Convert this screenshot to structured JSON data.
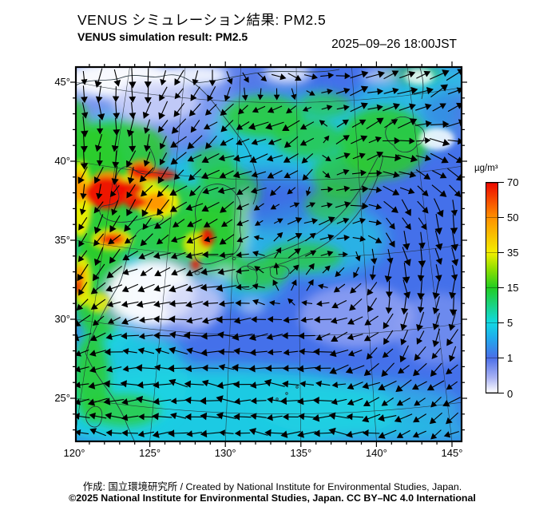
{
  "figure": {
    "title_jp": "VENUS シミュレーション結果: PM2.5",
    "title_en": "VENUS simulation result: PM2.5",
    "datetime": "2025–09–26 18:00JST",
    "credit": "作成: 国立環境研究所 / Created by National Institute for Environmental Studies, Japan.",
    "license": "©2025 National Institute for Environmental Studies, Japan. CC BY–NC 4.0 International"
  },
  "chart_data": {
    "type": "heatmap",
    "title": "VENUS simulation result: PM2.5",
    "valid_time": "2025-09-26 18:00 JST",
    "variable": "PM2.5 surface concentration with wind vectors",
    "unit": "µg/m³",
    "x_axis": {
      "tick_labels": [
        "120°",
        "125°",
        "130°",
        "135°",
        "140°",
        "145°"
      ],
      "tick_lons": [
        120,
        125,
        130,
        135,
        140,
        145
      ],
      "minor_step_deg": 1
    },
    "y_axis": {
      "tick_labels": [
        "45°",
        "40°",
        "35°",
        "30°",
        "25°"
      ],
      "tick_lats": [
        45,
        40,
        35,
        30,
        25
      ],
      "minor_step_deg": 1
    },
    "legend_position": "right",
    "grid": true,
    "colorbar": {
      "unit": "µg/m³",
      "tick_values": [
        "70",
        "50",
        "35",
        "15",
        "5",
        "1",
        "0"
      ],
      "tick_pcts": [
        100,
        83.3,
        66.7,
        50,
        33.3,
        16.7,
        0
      ],
      "gradient_stops": [
        [
          0,
          "#ffffff"
        ],
        [
          7,
          "#aab3f3"
        ],
        [
          16.7,
          "#4a6ee8"
        ],
        [
          26,
          "#21aaec"
        ],
        [
          33.3,
          "#12d8e2"
        ],
        [
          50,
          "#22cd22"
        ],
        [
          59,
          "#90df00"
        ],
        [
          66.7,
          "#f2ee00"
        ],
        [
          83.3,
          "#ff9100"
        ],
        [
          100,
          "#ec0800"
        ]
      ]
    },
    "field_blobs": [
      [
        75,
        52,
        115,
        55,
        "lightblue",
        0.9,
        1
      ],
      [
        200,
        28,
        85,
        35,
        "lightblue",
        0.75,
        1
      ],
      [
        470,
        45,
        55,
        45,
        "lightblue",
        0.55,
        1
      ],
      [
        170,
        430,
        235,
        55,
        "cyan",
        0.9,
        1
      ],
      [
        40,
        210,
        55,
        150,
        "cyan",
        0.85,
        1
      ],
      [
        145,
        192,
        75,
        85,
        "cyan",
        0.8,
        1
      ],
      [
        265,
        88,
        95,
        60,
        "cyan",
        0.8,
        1
      ],
      [
        300,
        215,
        90,
        48,
        "cyan",
        0.65,
        1
      ],
      [
        410,
        60,
        70,
        48,
        "cyan",
        0.7,
        1
      ],
      [
        60,
        390,
        80,
        70,
        "cyan",
        0.85,
        1
      ],
      [
        460,
        18,
        40,
        24,
        "cyan",
        0.7,
        1
      ],
      [
        355,
        428,
        130,
        35,
        "cyan",
        0.55,
        1
      ],
      [
        420,
        458,
        90,
        16,
        "cyan",
        0.6,
        1
      ],
      [
        210,
        270,
        50,
        28,
        "cyan",
        0.6,
        1
      ],
      [
        245,
        165,
        65,
        40,
        "blue2",
        0.6,
        1
      ],
      [
        465,
        55,
        35,
        30,
        "blue2",
        0.5,
        1
      ],
      [
        250,
        22,
        60,
        28,
        "blue2",
        0.5,
        1
      ],
      [
        25,
        160,
        35,
        90,
        "green",
        0.9,
        2
      ],
      [
        30,
        270,
        35,
        70,
        "green",
        0.85,
        2
      ],
      [
        55,
        105,
        60,
        38,
        "green",
        0.85,
        2
      ],
      [
        100,
        190,
        70,
        52,
        "green",
        0.8,
        2
      ],
      [
        160,
        222,
        52,
        42,
        "green",
        0.8,
        2
      ],
      [
        185,
        200,
        32,
        30,
        "green",
        0.75,
        2
      ],
      [
        190,
        158,
        40,
        32,
        "green",
        0.7,
        2
      ],
      [
        235,
        62,
        50,
        26,
        "green",
        0.8,
        2
      ],
      [
        290,
        90,
        42,
        24,
        "green",
        0.7,
        2
      ],
      [
        385,
        95,
        55,
        45,
        "green",
        0.85,
        2
      ],
      [
        338,
        135,
        42,
        28,
        "green",
        0.7,
        2
      ],
      [
        322,
        172,
        35,
        22,
        "green",
        0.6,
        2
      ],
      [
        285,
        238,
        48,
        18,
        "green",
        0.7,
        2
      ],
      [
        225,
        258,
        40,
        20,
        "green",
        0.75,
        2
      ],
      [
        20,
        390,
        22,
        55,
        "green",
        0.85,
        2
      ],
      [
        60,
        430,
        45,
        20,
        "green",
        0.75,
        2
      ],
      [
        172,
        122,
        28,
        22,
        "green",
        0.65,
        2
      ],
      [
        0,
        85,
        16,
        45,
        "green",
        0.9,
        2
      ],
      [
        312,
        48,
        32,
        16,
        "green",
        0.6,
        2
      ],
      [
        418,
        8,
        40,
        12,
        "green",
        0.5,
        2
      ],
      [
        352,
        312,
        72,
        40,
        "periwinkle",
        0.8,
        2
      ],
      [
        452,
        328,
        52,
        45,
        "periwinkle",
        0.5,
        2
      ],
      [
        110,
        290,
        80,
        52,
        "periwinkle",
        0.6,
        2
      ],
      [
        212,
        195,
        10,
        42,
        "paleLav",
        0.45,
        2
      ],
      [
        187,
        258,
        14,
        10,
        "paleLav",
        0.6,
        2
      ],
      [
        220,
        300,
        16,
        10,
        "paleLav",
        0.55,
        2
      ],
      [
        55,
        15,
        72,
        24,
        "white",
        0.95,
        2
      ],
      [
        100,
        44,
        55,
        26,
        "paleLav",
        0.85,
        2
      ],
      [
        150,
        10,
        40,
        14,
        "white",
        0.85,
        2
      ],
      [
        265,
        8,
        30,
        12,
        "white",
        0.8,
        2
      ],
      [
        380,
        12,
        22,
        10,
        "paleLav",
        0.7,
        2
      ],
      [
        95,
        283,
        55,
        40,
        "white",
        0.95,
        2
      ],
      [
        147,
        297,
        36,
        28,
        "paleLav",
        0.7,
        2
      ],
      [
        452,
        90,
        22,
        14,
        "white",
        0.85,
        3
      ],
      [
        430,
        12,
        18,
        10,
        "white",
        0.8,
        3
      ],
      [
        6,
        165,
        14,
        48,
        "yellow",
        0.95,
        3
      ],
      [
        103,
        170,
        27,
        20,
        "yellow",
        0.95,
        3
      ],
      [
        8,
        268,
        12,
        32,
        "yellow",
        0.9,
        3
      ],
      [
        152,
        222,
        18,
        16,
        "yellow",
        0.8,
        3
      ],
      [
        28,
        295,
        14,
        13,
        "yellow",
        0.8,
        3
      ],
      [
        75,
        152,
        30,
        20,
        "yellow",
        0.8,
        3
      ],
      [
        45,
        216,
        26,
        14,
        "yellow",
        0.85,
        3
      ],
      [
        100,
        170,
        17,
        12,
        "orange",
        0.95,
        3
      ],
      [
        40,
        152,
        24,
        22,
        "orange",
        0.9,
        3
      ],
      [
        82,
        130,
        18,
        14,
        "orange",
        0.85,
        3
      ],
      [
        5,
        262,
        7,
        14,
        "orange",
        0.85,
        3
      ],
      [
        45,
        216,
        19,
        9,
        "orange",
        0.9,
        3
      ],
      [
        4,
        150,
        8,
        20,
        "orange",
        0.9,
        3
      ],
      [
        38,
        158,
        27,
        20,
        "red",
        0.95,
        3
      ],
      [
        65,
        152,
        20,
        9,
        "red",
        0.9,
        3
      ],
      [
        74,
        169,
        13,
        9,
        "red",
        0.92,
        3
      ],
      [
        80,
        131,
        13,
        9,
        "red",
        0.9,
        3
      ],
      [
        105,
        135,
        22,
        7,
        "red",
        0.85,
        3
      ],
      [
        164,
        214,
        9,
        12,
        "red",
        0.92,
        3
      ],
      [
        150,
        247,
        6,
        8,
        "red",
        0.8,
        3
      ],
      [
        3,
        276,
        6,
        10,
        "red",
        0.85,
        3
      ],
      [
        45,
        216,
        13,
        6,
        "red",
        0.9,
        3
      ]
    ],
    "wind_vectors_grid": {
      "cols": 8,
      "rows": 8,
      "dxdy": [
        [
          [
            -0.2,
            0.9
          ],
          [
            0.1,
            0.9
          ],
          [
            -0.4,
            0.7
          ],
          [
            0.6,
            0.4
          ],
          [
            0.9,
            0.1
          ],
          [
            1,
            -0.2
          ],
          [
            0.9,
            -0.5
          ],
          [
            0.9,
            -0.6
          ]
        ],
        [
          [
            0,
            1
          ],
          [
            0,
            0.9
          ],
          [
            -0.6,
            0.7
          ],
          [
            -0.8,
            0.4
          ],
          [
            -0.9,
            0.3
          ],
          [
            0.7,
            -0.4
          ],
          [
            1,
            -0.3
          ],
          [
            1,
            -0.2
          ]
        ],
        [
          [
            -0.2,
            0.9
          ],
          [
            -0.4,
            0.8
          ],
          [
            -0.7,
            0.5
          ],
          [
            -0.8,
            0.3
          ],
          [
            -0.6,
            0.5
          ],
          [
            0.8,
            -0.3
          ],
          [
            0.9,
            0.2
          ],
          [
            0.6,
            0.8
          ]
        ],
        [
          [
            -0.3,
            0.9
          ],
          [
            -0.6,
            0.7
          ],
          [
            -0.8,
            0.4
          ],
          [
            -0.5,
            0.3
          ],
          [
            0.6,
            -0.4
          ],
          [
            0.8,
            -0.2
          ],
          [
            0.3,
            0.9
          ],
          [
            0.1,
            1
          ]
        ],
        [
          [
            -0.5,
            0.8
          ],
          [
            -0.8,
            0.4
          ],
          [
            -0.9,
            0.2
          ],
          [
            -0.9,
            -0.1
          ],
          [
            0.5,
            -0.5
          ],
          [
            -0.6,
            0.4
          ],
          [
            0.1,
            1
          ],
          [
            -0.1,
            1
          ]
        ],
        [
          [
            -0.7,
            0.5
          ],
          [
            -0.9,
            0.1
          ],
          [
            -1,
            -0.1
          ],
          [
            -1,
            0.1
          ],
          [
            -0.9,
            0.2
          ],
          [
            -0.8,
            0.3
          ],
          [
            -0.3,
            0.9
          ],
          [
            -0.4,
            0.8
          ]
        ],
        [
          [
            -0.8,
            0.3
          ],
          [
            -1,
            0
          ],
          [
            -1,
            -0.2
          ],
          [
            -1,
            0
          ],
          [
            -0.9,
            -0.1
          ],
          [
            -0.9,
            0.2
          ],
          [
            -0.7,
            0.5
          ],
          [
            -0.6,
            0.6
          ]
        ],
        [
          [
            -0.7,
            -0.3
          ],
          [
            -1,
            -0.1
          ],
          [
            -1,
            0.1
          ],
          [
            -0.9,
            -0.2
          ],
          [
            -1,
            0
          ],
          [
            -0.9,
            -0.1
          ],
          [
            -0.8,
            0.3
          ],
          [
            -0.7,
            0.4
          ]
        ]
      ]
    }
  },
  "palette": {
    "base": "#4470ea",
    "blue2": "#3a62e2",
    "lightblue": "#7e99f0",
    "periwinkle": "#94a4f2",
    "paleLav": "#ccd2f8",
    "white": "#ffffff",
    "cyan": "#1bd4e2",
    "green": "#2bcd2b",
    "yellow": "#f1ee00",
    "orange": "#ff9300",
    "red": "#ee1004",
    "frame": "#000000",
    "coast": "#22323a",
    "arrow": "#000000"
  }
}
